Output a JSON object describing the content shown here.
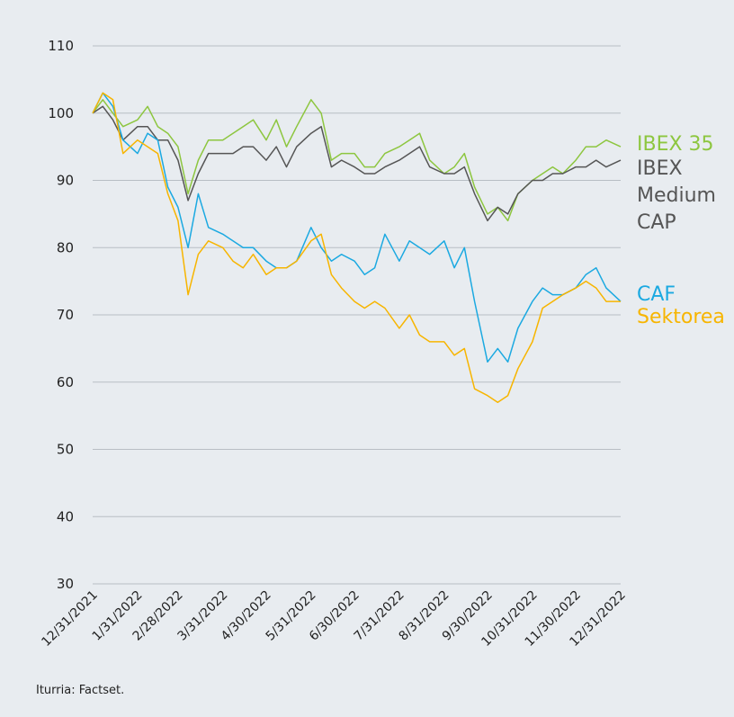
{
  "chart_data": {
    "type": "line",
    "note": "Iturria: Factset.",
    "x": [
      "12/31/2021",
      "1/7/2022",
      "1/14/2022",
      "1/21/2022",
      "1/31/2022",
      "2/7/2022",
      "2/14/2022",
      "2/21/2022",
      "2/28/2022",
      "3/7/2022",
      "3/14/2022",
      "3/21/2022",
      "3/31/2022",
      "4/7/2022",
      "4/14/2022",
      "4/21/2022",
      "4/30/2022",
      "5/7/2022",
      "5/14/2022",
      "5/21/2022",
      "5/31/2022",
      "6/7/2022",
      "6/14/2022",
      "6/21/2022",
      "6/30/2022",
      "7/7/2022",
      "7/14/2022",
      "7/21/2022",
      "7/31/2022",
      "8/7/2022",
      "8/14/2022",
      "8/21/2022",
      "8/31/2022",
      "9/7/2022",
      "9/14/2022",
      "9/21/2022",
      "9/30/2022",
      "10/7/2022",
      "10/14/2022",
      "10/21/2022",
      "10/31/2022",
      "11/7/2022",
      "11/14/2022",
      "11/21/2022",
      "11/30/2022",
      "12/7/2022",
      "12/14/2022",
      "12/21/2022",
      "12/31/2022"
    ],
    "series": [
      {
        "name": "IBEX 35",
        "color": "#8dc63f",
        "values": [
          100,
          102,
          100,
          98,
          99,
          101,
          98,
          97,
          95,
          88,
          93,
          96,
          96,
          97,
          98,
          99,
          96,
          99,
          95,
          98,
          102,
          100,
          93,
          94,
          94,
          92,
          92,
          94,
          95,
          96,
          97,
          93,
          91,
          92,
          94,
          89,
          85,
          86,
          84,
          88,
          90,
          91,
          92,
          91,
          93,
          95,
          95,
          96,
          95
        ]
      },
      {
        "name": "IBEX Medium CAP",
        "color": "#555555",
        "values": [
          100,
          101,
          99,
          96,
          98,
          98,
          96,
          96,
          93,
          87,
          91,
          94,
          94,
          94,
          95,
          95,
          93,
          95,
          92,
          95,
          97,
          98,
          92,
          93,
          92,
          91,
          91,
          92,
          93,
          94,
          95,
          92,
          91,
          91,
          92,
          88,
          84,
          86,
          85,
          88,
          90,
          90,
          91,
          91,
          92,
          92,
          93,
          92,
          93
        ]
      },
      {
        "name": "CAF",
        "color": "#1ba9e1",
        "values": [
          100,
          103,
          101,
          96,
          94,
          97,
          96,
          89,
          86,
          80,
          88,
          83,
          82,
          81,
          80,
          80,
          78,
          77,
          77,
          78,
          83,
          80,
          78,
          79,
          78,
          76,
          77,
          82,
          78,
          81,
          80,
          79,
          81,
          77,
          80,
          72,
          63,
          65,
          63,
          68,
          72,
          74,
          73,
          73,
          74,
          76,
          77,
          74,
          72
        ]
      },
      {
        "name": "Sektorea",
        "color": "#f7b500",
        "values": [
          100,
          103,
          102,
          94,
          96,
          95,
          94,
          88,
          84,
          73,
          79,
          81,
          80,
          78,
          77,
          79,
          76,
          77,
          77,
          78,
          81,
          82,
          76,
          74,
          72,
          71,
          72,
          71,
          68,
          70,
          67,
          66,
          66,
          64,
          65,
          59,
          58,
          57,
          58,
          62,
          66,
          71,
          72,
          73,
          74,
          75,
          74,
          72,
          72
        ]
      }
    ],
    "xticks": [
      "12/31/2021",
      "1/31/2022",
      "2/28/2022",
      "3/31/2022",
      "4/30/2022",
      "5/31/2022",
      "6/30/2022",
      "7/31/2022",
      "8/31/2022",
      "9/30/2022",
      "10/31/2022",
      "11/30/2022",
      "12/31/2022"
    ],
    "xlim": [
      "12/31/2021",
      "12/31/2022"
    ],
    "ylim": [
      30,
      110
    ],
    "yticks": [
      30,
      40,
      50,
      60,
      70,
      80,
      90,
      100,
      110
    ],
    "grid": true
  }
}
